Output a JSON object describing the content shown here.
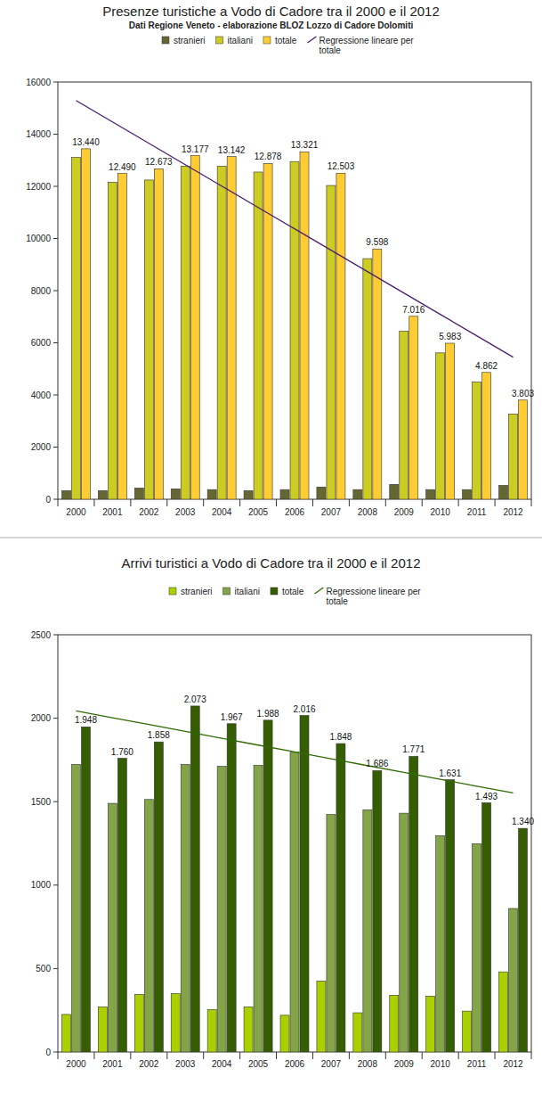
{
  "chart_data": [
    {
      "type": "bar",
      "title": "Presenze turistiche a Vodo di Cadore tra il 2000 e il 2012",
      "subtitle": "Dati Regione Veneto - elaborazione BLOZ Lozzo di Cadore Dolomiti",
      "categories": [
        "2000",
        "2001",
        "2002",
        "2003",
        "2004",
        "2005",
        "2006",
        "2007",
        "2008",
        "2009",
        "2010",
        "2011",
        "2012"
      ],
      "series": [
        {
          "name": "stranieri",
          "color": "#666633",
          "values": [
            330,
            330,
            430,
            400,
            370,
            330,
            370,
            470,
            370,
            570,
            370,
            370,
            530
          ]
        },
        {
          "name": "italiani",
          "color": "#cccc22",
          "values": [
            13110,
            12160,
            12243,
            12777,
            12772,
            12548,
            12951,
            12033,
            9228,
            6446,
            5613,
            4492,
            3273
          ]
        },
        {
          "name": "totale",
          "color": "#ffcc33",
          "data_labels": true,
          "values": [
            13440,
            12490,
            12673,
            13177,
            13142,
            12878,
            13321,
            12503,
            9598,
            7016,
            5983,
            4862,
            3803
          ],
          "value_labels": [
            "13.440",
            "12.490",
            "12.673",
            "13.177",
            "13.142",
            "12.878",
            "13.321",
            "12.503",
            "9.598",
            "7.016",
            "5.983",
            "4.862",
            "3.803"
          ]
        },
        {
          "name": "Regressione lineare per totale",
          "type": "line",
          "color": "#4b1f6f",
          "line_style": "solid",
          "values": [
            15290,
            14470,
            13650,
            12830,
            12010,
            11190,
            10370,
            9550,
            8730,
            7910,
            7090,
            6270,
            5450
          ]
        }
      ],
      "ylim": [
        0,
        16000
      ],
      "yticks": [
        0,
        2000,
        4000,
        6000,
        8000,
        10000,
        12000,
        14000,
        16000
      ],
      "grid": false,
      "legend": "top"
    },
    {
      "type": "bar",
      "title": "Arrivi turistici a Vodo di Cadore tra il 2000 e il 2012",
      "categories": [
        "2000",
        "2001",
        "2002",
        "2003",
        "2004",
        "2005",
        "2006",
        "2007",
        "2008",
        "2009",
        "2010",
        "2011",
        "2012"
      ],
      "series": [
        {
          "name": "stranieri",
          "color": "#aad000",
          "values": [
            225,
            270,
            345,
            350,
            255,
            270,
            220,
            425,
            235,
            340,
            335,
            245,
            480
          ]
        },
        {
          "name": "italiani",
          "color": "#83a447",
          "values": [
            1723,
            1490,
            1513,
            1723,
            1712,
            1718,
            1796,
            1423,
            1451,
            1431,
            1296,
            1248,
            860
          ]
        },
        {
          "name": "totale",
          "color": "#355e00",
          "data_labels": true,
          "values": [
            1948,
            1760,
            1858,
            2073,
            1967,
            1988,
            2016,
            1848,
            1686,
            1771,
            1631,
            1493,
            1340
          ],
          "value_labels": [
            "1.948",
            "1.760",
            "1.858",
            "2.073",
            "1.967",
            "1.988",
            "2.016",
            "1.848",
            "1.686",
            "1.771",
            "1.631",
            "1.493",
            "1.340"
          ]
        },
        {
          "name": "Regressione lineare per totale",
          "type": "line",
          "color": "#2f6b00",
          "line_style": "solid",
          "values": [
            2044,
            2003,
            1962,
            1921,
            1880,
            1839,
            1798,
            1757,
            1716,
            1675,
            1634,
            1593,
            1552
          ]
        }
      ],
      "ylim": [
        0,
        2500
      ],
      "yticks": [
        0,
        500,
        1000,
        1500,
        2000,
        2500
      ],
      "grid": false,
      "legend": "top"
    }
  ]
}
